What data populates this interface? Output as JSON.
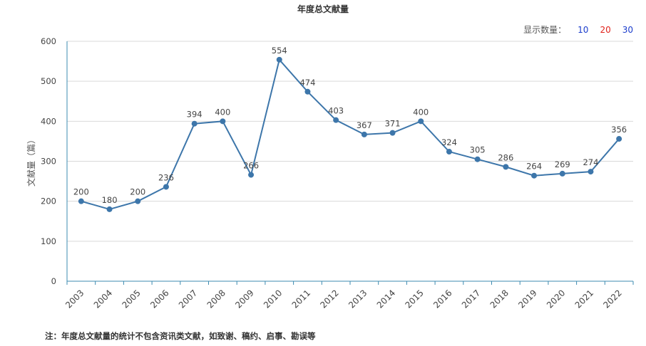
{
  "display": {
    "label": "显示数量：",
    "options": [
      "10",
      "20",
      "30"
    ]
  },
  "footnote": "注：年度总文献量的统计不包含资讯类文献，如致谢、稿约、启事、勘误等",
  "colors": {
    "line": "#3d76aa",
    "grid": "#d9d9d9",
    "axis": "#3d8bb0",
    "option_blue": "#1a3ccc",
    "option_red": "#e0221b"
  },
  "chart_data": {
    "type": "line",
    "title": "年度总文献量",
    "ylabel": "文献量（篇）",
    "xlabel": "",
    "ylim": [
      0,
      600
    ],
    "yticks": [
      0,
      100,
      200,
      300,
      400,
      500,
      600
    ],
    "grid": true,
    "categories": [
      "2003",
      "2004",
      "2005",
      "2006",
      "2007",
      "2008",
      "2009",
      "2010",
      "2011",
      "2012",
      "2013",
      "2014",
      "2015",
      "2016",
      "2017",
      "2018",
      "2019",
      "2020",
      "2021",
      "2022"
    ],
    "series": [
      {
        "values": [
          200,
          180,
          200,
          236,
          394,
          400,
          266,
          554,
          474,
          403,
          367,
          371,
          400,
          324,
          305,
          286,
          264,
          269,
          274,
          356
        ]
      }
    ]
  }
}
